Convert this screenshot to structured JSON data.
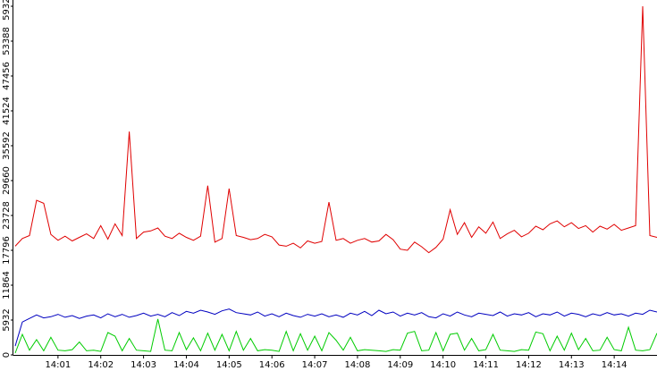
{
  "chart_data": {
    "type": "line",
    "categories": [
      null,
      null,
      null,
      null,
      null,
      null,
      "14:01",
      null,
      null,
      null,
      null,
      null,
      "14:02",
      null,
      null,
      null,
      null,
      null,
      "14:03",
      null,
      null,
      null,
      null,
      null,
      "14:04",
      null,
      null,
      null,
      null,
      null,
      "14:05",
      null,
      null,
      null,
      null,
      null,
      "14:06",
      null,
      null,
      null,
      null,
      null,
      "14:07",
      null,
      null,
      null,
      null,
      null,
      "14:08",
      null,
      null,
      null,
      null,
      null,
      "14:09",
      null,
      null,
      null,
      null,
      null,
      "14:10",
      null,
      null,
      null,
      null,
      null,
      "14:11",
      null,
      null,
      null,
      null,
      null,
      "14:12",
      null,
      null,
      null,
      null,
      null,
      "14:13",
      null,
      null,
      null,
      null,
      null,
      "14:14",
      null,
      null,
      null,
      null,
      null,
      null
    ],
    "series": [
      {
        "color": "#e00000",
        "values": [
          18500,
          19800,
          20300,
          26300,
          25800,
          20500,
          19500,
          20200,
          19400,
          20000,
          20600,
          19800,
          22000,
          19700,
          22300,
          20300,
          38000,
          19800,
          20900,
          21100,
          21600,
          20200,
          19800,
          20700,
          20000,
          19500,
          20200,
          28800,
          19200,
          19800,
          28300,
          20300,
          20000,
          19600,
          19800,
          20500,
          20100,
          18700,
          18500,
          19000,
          18200,
          19400,
          19000,
          19300,
          26000,
          19500,
          19800,
          19000,
          19500,
          19800,
          19200,
          19400,
          20500,
          19600,
          18000,
          17800,
          19200,
          18400,
          17400,
          18300,
          19700,
          24700,
          20500,
          22500,
          20000,
          21800,
          20700,
          22600,
          19800,
          20600,
          21200,
          20100,
          20700,
          21900,
          21300,
          22300,
          22800,
          21800,
          22500,
          21500,
          22000,
          20900,
          21900,
          21400,
          22200,
          21200,
          21600,
          22000,
          59320,
          20300,
          20000
        ]
      },
      {
        "color": "#0000c0",
        "values": [
          1500,
          5600,
          6200,
          6800,
          6300,
          6500,
          6900,
          6400,
          6700,
          6200,
          6600,
          6800,
          6300,
          7000,
          6500,
          6900,
          6400,
          6700,
          7100,
          6600,
          6900,
          6500,
          7200,
          6700,
          7400,
          7100,
          7600,
          7300,
          6900,
          7500,
          7800,
          7200,
          7000,
          6800,
          7300,
          6600,
          7000,
          6500,
          7100,
          6700,
          6400,
          6900,
          6600,
          7000,
          6500,
          6800,
          6400,
          7100,
          6800,
          7400,
          6700,
          7600,
          7000,
          7300,
          6600,
          7100,
          6800,
          7200,
          6500,
          6300,
          7000,
          6600,
          7300,
          6800,
          6500,
          7100,
          6900,
          6700,
          7300,
          6600,
          7000,
          6800,
          7200,
          6500,
          7000,
          6800,
          7300,
          6600,
          7100,
          6900,
          6500,
          7000,
          6700,
          7200,
          6800,
          7000,
          6600,
          7100,
          6900,
          7600,
          7300
        ]
      },
      {
        "color": "#00cc00",
        "values": [
          300,
          3500,
          800,
          2600,
          700,
          3000,
          800,
          700,
          900,
          2200,
          700,
          800,
          600,
          3800,
          3200,
          700,
          2800,
          800,
          700,
          600,
          6100,
          800,
          700,
          3800,
          900,
          2900,
          700,
          3700,
          800,
          3500,
          700,
          4000,
          800,
          2800,
          700,
          900,
          800,
          600,
          4000,
          700,
          3600,
          800,
          3200,
          700,
          3800,
          2500,
          800,
          3000,
          700,
          900,
          800,
          700,
          600,
          900,
          800,
          3700,
          4000,
          700,
          800,
          3800,
          700,
          3500,
          3700,
          800,
          2800,
          700,
          900,
          3500,
          800,
          700,
          600,
          900,
          800,
          3900,
          3600,
          700,
          3200,
          800,
          3700,
          900,
          2800,
          700,
          800,
          3000,
          900,
          700,
          4700,
          800,
          700,
          900,
          3700
        ]
      }
    ],
    "ylim": [
      0,
      59320
    ],
    "yticks": [
      0,
      5932,
      11864,
      17796,
      23728,
      29660,
      35592,
      41524,
      47456,
      53388,
      59320
    ],
    "grid": false
  }
}
